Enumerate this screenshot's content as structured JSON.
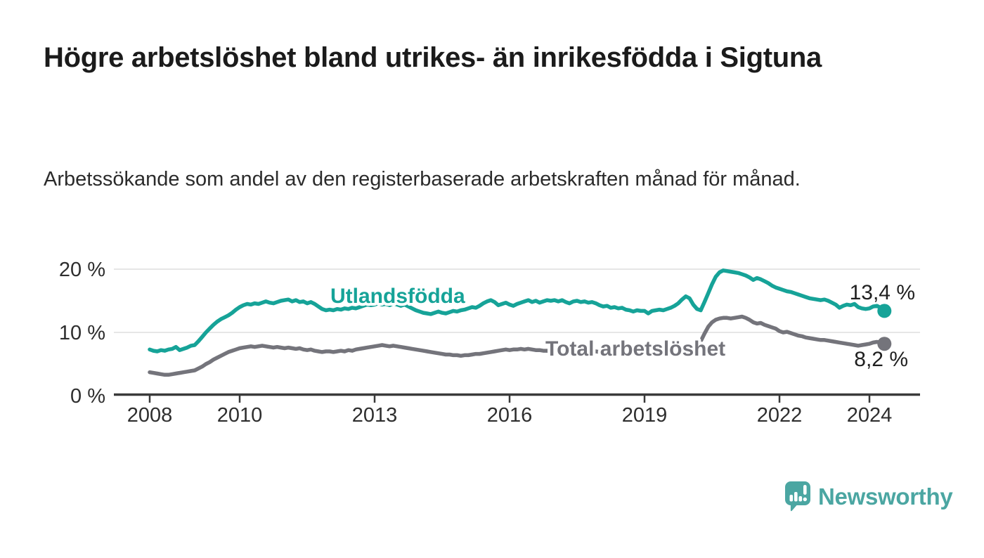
{
  "header": {
    "title": "Högre arbetslöshet bland utrikes- än inrikesfödda i Sigtuna",
    "subtitle": "Arbetssökande som andel av den registerbaserade arbetskraften månad för månad."
  },
  "footer": {
    "brand": "Newsworthy"
  },
  "colors": {
    "line_utlandsfodda": "#16a398",
    "line_total": "#74747b",
    "grid": "#dddddd",
    "axis": "#3a3a3a",
    "axis_text": "#2e2e2e",
    "value_text": "#1f1f1f",
    "title_text": "#1b1b1b",
    "brand_teal": "#4ba6a2"
  },
  "chart_data": {
    "type": "line",
    "title": "Högre arbetslöshet bland utrikes- än inrikesfödda i Sigtuna",
    "xlabel": "",
    "ylabel": "",
    "x_unit": "month",
    "x_range": [
      "2008-01",
      "2024-05"
    ],
    "ylim": [
      0,
      21
    ],
    "grid": true,
    "legend_position": "inline-labels",
    "x_tick_labels": [
      "2008",
      "2010",
      "2013",
      "2016",
      "2019",
      "2022",
      "2024"
    ],
    "y_ticks": [
      {
        "value": 0,
        "label": "0 %"
      },
      {
        "value": 10,
        "label": "10 %"
      },
      {
        "value": 20,
        "label": "20 %"
      }
    ],
    "series": [
      {
        "name": "Utlandsfödda",
        "color": "#16a398",
        "end_label": "13,4 %",
        "end_value": 13.4,
        "values": [
          7.3,
          7.1,
          7.0,
          7.2,
          7.1,
          7.3,
          7.4,
          7.7,
          7.2,
          7.4,
          7.6,
          7.9,
          8.0,
          8.6,
          9.3,
          10.0,
          10.6,
          11.2,
          11.7,
          12.1,
          12.4,
          12.7,
          13.1,
          13.6,
          14.0,
          14.3,
          14.5,
          14.4,
          14.6,
          14.5,
          14.7,
          14.9,
          14.7,
          14.6,
          14.8,
          15.0,
          15.1,
          15.2,
          14.9,
          15.1,
          14.8,
          14.9,
          14.6,
          14.8,
          14.5,
          14.1,
          13.7,
          13.5,
          13.6,
          13.5,
          13.7,
          13.6,
          13.8,
          13.7,
          13.9,
          13.8,
          14.0,
          14.2,
          14.4,
          14.3,
          14.4,
          14.6,
          14.4,
          14.5,
          14.3,
          14.6,
          14.4,
          14.2,
          14.4,
          14.1,
          13.8,
          13.5,
          13.3,
          13.1,
          13.0,
          12.9,
          13.1,
          13.3,
          13.1,
          13.0,
          13.2,
          13.4,
          13.3,
          13.5,
          13.6,
          13.8,
          14.0,
          13.9,
          14.2,
          14.6,
          14.9,
          15.1,
          14.8,
          14.3,
          14.5,
          14.7,
          14.4,
          14.2,
          14.5,
          14.7,
          14.9,
          15.1,
          14.8,
          15.0,
          14.7,
          14.9,
          15.1,
          15.0,
          15.1,
          14.9,
          15.1,
          14.8,
          14.6,
          14.9,
          15.0,
          14.8,
          14.9,
          14.7,
          14.8,
          14.6,
          14.3,
          14.1,
          14.2,
          13.9,
          14.0,
          13.8,
          13.9,
          13.6,
          13.5,
          13.3,
          13.5,
          13.4,
          13.4,
          13.0,
          13.4,
          13.5,
          13.6,
          13.5,
          13.7,
          13.9,
          14.2,
          14.6,
          15.2,
          15.7,
          15.4,
          14.4,
          13.7,
          13.5,
          14.8,
          16.2,
          17.6,
          18.8,
          19.5,
          19.8,
          19.7,
          19.6,
          19.5,
          19.4,
          19.2,
          19.0,
          18.7,
          18.3,
          18.6,
          18.4,
          18.1,
          17.8,
          17.4,
          17.1,
          16.9,
          16.7,
          16.5,
          16.4,
          16.2,
          16.0,
          15.8,
          15.6,
          15.4,
          15.3,
          15.2,
          15.1,
          15.2,
          15.0,
          14.7,
          14.4,
          13.9,
          14.2,
          14.4,
          14.3,
          14.5,
          14.0,
          13.8,
          13.7,
          13.8,
          14.1,
          14.2,
          13.9,
          13.4
        ]
      },
      {
        "name": "Total arbetslöshet",
        "color": "#74747b",
        "end_label": "8,2 %",
        "end_value": 8.2,
        "values": [
          3.7,
          3.6,
          3.5,
          3.4,
          3.3,
          3.3,
          3.4,
          3.5,
          3.6,
          3.7,
          3.8,
          3.9,
          4.0,
          4.3,
          4.6,
          5.0,
          5.3,
          5.7,
          6.0,
          6.3,
          6.6,
          6.9,
          7.1,
          7.3,
          7.5,
          7.6,
          7.7,
          7.8,
          7.7,
          7.8,
          7.9,
          7.8,
          7.7,
          7.6,
          7.7,
          7.6,
          7.5,
          7.6,
          7.5,
          7.4,
          7.5,
          7.3,
          7.2,
          7.3,
          7.1,
          7.0,
          6.9,
          7.0,
          7.0,
          6.9,
          7.0,
          7.1,
          7.0,
          7.2,
          7.1,
          7.3,
          7.4,
          7.5,
          7.6,
          7.7,
          7.8,
          7.9,
          8.0,
          7.9,
          7.8,
          7.9,
          7.8,
          7.7,
          7.6,
          7.5,
          7.4,
          7.3,
          7.2,
          7.1,
          7.0,
          6.9,
          6.8,
          6.7,
          6.6,
          6.5,
          6.5,
          6.4,
          6.4,
          6.3,
          6.4,
          6.4,
          6.5,
          6.6,
          6.6,
          6.7,
          6.8,
          6.9,
          7.0,
          7.1,
          7.2,
          7.3,
          7.2,
          7.3,
          7.3,
          7.4,
          7.3,
          7.4,
          7.3,
          7.2,
          7.2,
          7.1,
          7.1,
          7.0,
          7.1,
          7.0,
          7.1,
          7.0,
          7.0,
          7.1,
          7.0,
          7.1,
          7.0,
          7.0,
          6.9,
          7.0,
          6.9,
          6.9,
          6.8,
          6.9,
          6.8,
          6.9,
          7.0,
          6.9,
          7.0,
          7.0,
          7.1,
          7.1,
          7.2,
          7.2,
          7.3,
          7.3,
          7.4,
          7.4,
          7.5,
          7.5,
          7.6,
          7.6,
          7.5,
          7.6,
          7.5,
          7.4,
          7.6,
          8.6,
          9.8,
          10.9,
          11.6,
          12.0,
          12.2,
          12.3,
          12.3,
          12.2,
          12.3,
          12.4,
          12.5,
          12.3,
          12.0,
          11.6,
          11.4,
          11.5,
          11.2,
          11.0,
          10.8,
          10.6,
          10.2,
          10.0,
          10.1,
          9.9,
          9.7,
          9.5,
          9.4,
          9.2,
          9.1,
          9.0,
          8.9,
          8.8,
          8.8,
          8.7,
          8.6,
          8.5,
          8.4,
          8.3,
          8.2,
          8.1,
          8.0,
          7.9,
          8.0,
          8.1,
          8.2,
          8.4,
          8.5,
          8.4,
          8.2
        ]
      }
    ]
  }
}
